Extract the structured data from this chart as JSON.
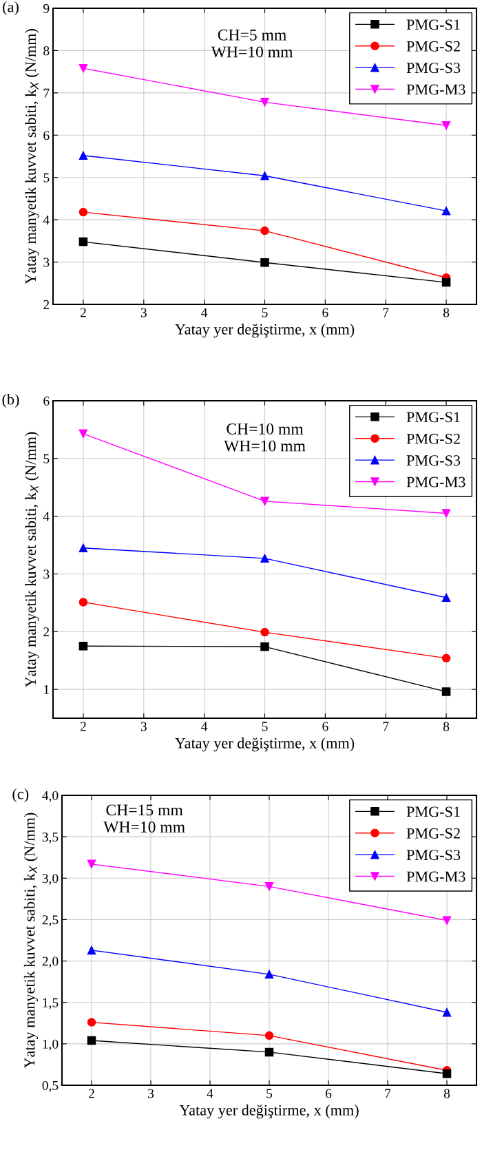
{
  "chart_data": [
    {
      "type": "line",
      "xlabel": "Yatay yer değiştirme, x (mm)",
      "ylabel": "Yatay manyetik kuvvet sabiti, k$_{X}$ (N/mm)",
      "annotations": [
        "(a)",
        "CH=5 mm\nWH=10 mm"
      ],
      "x": [
        2,
        5,
        8
      ],
      "xlim": [
        1.5,
        8.5
      ],
      "xticks": [
        2,
        3,
        4,
        5,
        6,
        7,
        8
      ],
      "ylim": [
        2,
        9
      ],
      "yticks": [
        2,
        3,
        4,
        5,
        6,
        7,
        8,
        9
      ],
      "grid": true,
      "legend": "top right",
      "series": [
        {
          "name": "PMG-S1",
          "color": "#000000",
          "marker": "square",
          "values": [
            3.48,
            2.99,
            2.52
          ]
        },
        {
          "name": "PMG-S2",
          "color": "#ff0000",
          "marker": "circle",
          "values": [
            4.18,
            3.74,
            2.63
          ]
        },
        {
          "name": "PMG-S3",
          "color": "#0000ff",
          "marker": "triangle",
          "values": [
            5.52,
            5.04,
            4.21
          ]
        },
        {
          "name": "PMG-M3",
          "color": "#ff00ff",
          "marker": "triangle-down",
          "values": [
            7.58,
            6.78,
            6.23
          ]
        }
      ]
    },
    {
      "type": "line",
      "xlabel": "Yatay yer değiştirme, x (mm)",
      "ylabel": "Yatay manyetik kuvvet sabiti, k$_{X}$ (N/mm)",
      "annotations": [
        "(b)",
        "CH=10 mm\nWH=10 mm"
      ],
      "x": [
        2,
        5,
        8
      ],
      "xlim": [
        1.5,
        8.5
      ],
      "xticks": [
        2,
        3,
        4,
        5,
        6,
        7,
        8
      ],
      "ylim": [
        0.5,
        6
      ],
      "yticks": [
        1,
        2,
        3,
        4,
        5,
        6
      ],
      "grid": true,
      "legend": "top right",
      "series": [
        {
          "name": "PMG-S1",
          "color": "#000000",
          "marker": "square",
          "values": [
            1.75,
            1.74,
            0.96
          ]
        },
        {
          "name": "PMG-S2",
          "color": "#ff0000",
          "marker": "circle",
          "values": [
            2.51,
            1.99,
            1.54
          ]
        },
        {
          "name": "PMG-S3",
          "color": "#0000ff",
          "marker": "triangle",
          "values": [
            3.45,
            3.27,
            2.59
          ]
        },
        {
          "name": "PMG-M3",
          "color": "#ff00ff",
          "marker": "triangle-down",
          "values": [
            5.43,
            4.26,
            4.05
          ]
        }
      ]
    },
    {
      "type": "line",
      "xlabel": "Yatay yer değiştirme, x (mm)",
      "ylabel": "Yatay manyetik kuvvet sabiti, k$_{X}$ (N/mm)",
      "annotations": [
        "(c)",
        "CH=15 mm\nWH=10 mm"
      ],
      "x": [
        2,
        5,
        8
      ],
      "xlim": [
        1.5,
        8.5
      ],
      "xticks": [
        2,
        3,
        4,
        5,
        6,
        7,
        8
      ],
      "ylim": [
        0.5,
        4.0
      ],
      "yticks": [
        {
          "value": 0.5,
          "label": "0,5"
        },
        {
          "value": 1.0,
          "label": "1,0"
        },
        {
          "value": 1.5,
          "label": "1,5"
        },
        {
          "value": 2.0,
          "label": "2,0"
        },
        {
          "value": 2.5,
          "label": "2,5"
        },
        {
          "value": 3.0,
          "label": "3,0"
        },
        {
          "value": 3.5,
          "label": "3,5"
        },
        {
          "value": 4.0,
          "label": "4,0"
        }
      ],
      "grid": true,
      "legend": "top right",
      "series": [
        {
          "name": "PMG-S1",
          "color": "#000000",
          "marker": "square",
          "values": [
            1.04,
            0.9,
            0.64
          ]
        },
        {
          "name": "PMG-S2",
          "color": "#ff0000",
          "marker": "circle",
          "values": [
            1.26,
            1.1,
            0.68
          ]
        },
        {
          "name": "PMG-S3",
          "color": "#0000ff",
          "marker": "triangle",
          "values": [
            2.13,
            1.84,
            1.38
          ]
        },
        {
          "name": "PMG-M3",
          "color": "#ff00ff",
          "marker": "triangle-down",
          "values": [
            3.17,
            2.9,
            2.49
          ]
        }
      ]
    }
  ]
}
